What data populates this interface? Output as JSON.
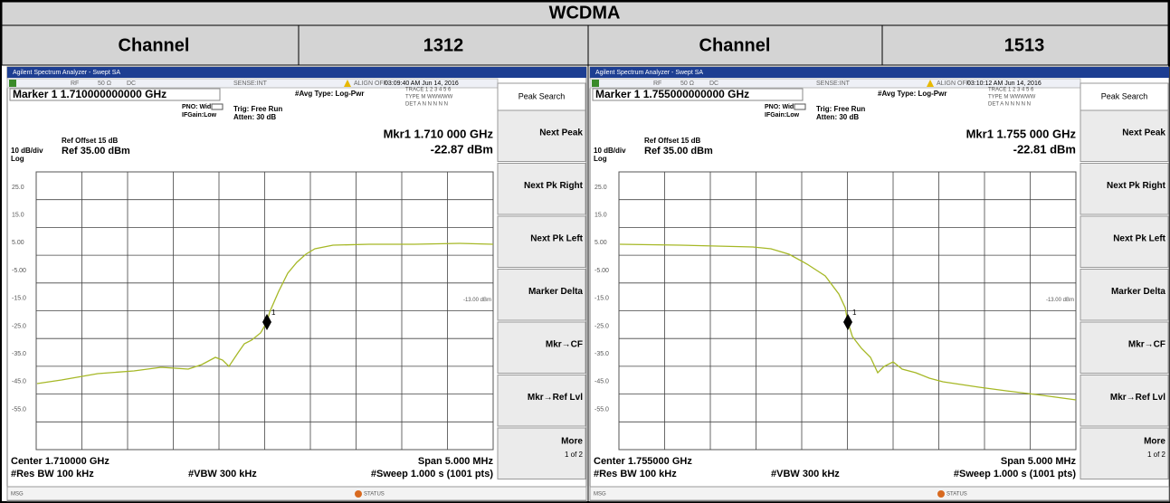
{
  "table": {
    "title": "WCDMA",
    "columns": [
      {
        "label": "Channel",
        "value": "1312"
      },
      {
        "label": "Channel",
        "value": "1513"
      }
    ]
  },
  "panels": [
    {
      "window_title": "Agilent Spectrum Analyzer - Swept SA",
      "rf": "RF",
      "impedance": "50 Ω",
      "coupling": "DC",
      "sense": "SENSE:INT",
      "align": "ALIGN OFF",
      "time": "03:09:40 AM Jun 14, 2016",
      "marker_readout": "Marker 1 1.710000000000 GHz",
      "pno": "PNO: Wide",
      "ifgain": "IFGain:Low",
      "trig": "Trig: Free Run",
      "atten": "Atten: 30 dB",
      "avg_type": "#Avg Type: Log-Pwr",
      "trace_row": "TRACE 1 2 3 4 5 6",
      "type_row": "TYPE M WWWWW",
      "det_row": "DET A N N N N N",
      "ref_offset": "Ref Offset 15 dB",
      "scale": "10 dB/div",
      "ref_level": "Ref 35.00 dBm",
      "log": "Log",
      "marker_freq": "Mkr1 1.710 000 GHz",
      "marker_level": "-22.87 dBm",
      "y_labels": [
        "25.0",
        "15.0",
        "5.00",
        "-5.00",
        "-15.0",
        "-25.0",
        "-35.0",
        "-45.0",
        "-55.0"
      ],
      "limit_label": "-13.00 dBm",
      "marker_number": "1",
      "center": "Center 1.710000 GHz",
      "span": "Span 5.000 MHz",
      "res_bw": "#Res BW 100 kHz",
      "vbw": "#VBW 300 kHz",
      "sweep": "#Sweep  1.000 s (1001 pts)",
      "msg": "MSG",
      "status": "STATUS",
      "menu_title": "Peak Search",
      "softkeys": [
        "Next Peak",
        "Next Pk Right",
        "Next Pk Left",
        "Marker Delta",
        "Mkr→CF",
        "Mkr→Ref Lvl",
        "More"
      ],
      "page": "1 of 2"
    },
    {
      "window_title": "Agilent Spectrum Analyzer - Swept SA",
      "rf": "RF",
      "impedance": "50 Ω",
      "coupling": "DC",
      "sense": "SENSE:INT",
      "align": "ALIGN OFF",
      "time": "03:10:12 AM Jun 14, 2016",
      "marker_readout": "Marker 1 1.755000000000 GHz",
      "pno": "PNO: Wide",
      "ifgain": "IFGain:Low",
      "trig": "Trig: Free Run",
      "atten": "Atten: 30 dB",
      "avg_type": "#Avg Type: Log-Pwr",
      "trace_row": "TRACE 1 2 3 4 5 6",
      "type_row": "TYPE M WWWWW",
      "det_row": "DET A N N N N N",
      "ref_offset": "Ref Offset 15 dB",
      "scale": "10 dB/div",
      "ref_level": "Ref 35.00 dBm",
      "log": "Log",
      "marker_freq": "Mkr1 1.755 000 GHz",
      "marker_level": "-22.81 dBm",
      "y_labels": [
        "25.0",
        "15.0",
        "5.00",
        "-5.00",
        "-15.0",
        "-25.0",
        "-35.0",
        "-45.0",
        "-55.0"
      ],
      "limit_label": "-13.00 dBm",
      "marker_number": "1",
      "center": "Center 1.755000 GHz",
      "span": "Span 5.000 MHz",
      "res_bw": "#Res BW 100 kHz",
      "vbw": "#VBW 300 kHz",
      "sweep": "#Sweep  1.000 s (1001 pts)",
      "msg": "MSG",
      "status": "STATUS",
      "menu_title": "Peak Search",
      "softkeys": [
        "Next Peak",
        "Next Pk Right",
        "Next Pk Left",
        "Marker Delta",
        "Mkr→CF",
        "Mkr→Ref Lvl",
        "More"
      ],
      "page": "1 of 2"
    }
  ]
}
